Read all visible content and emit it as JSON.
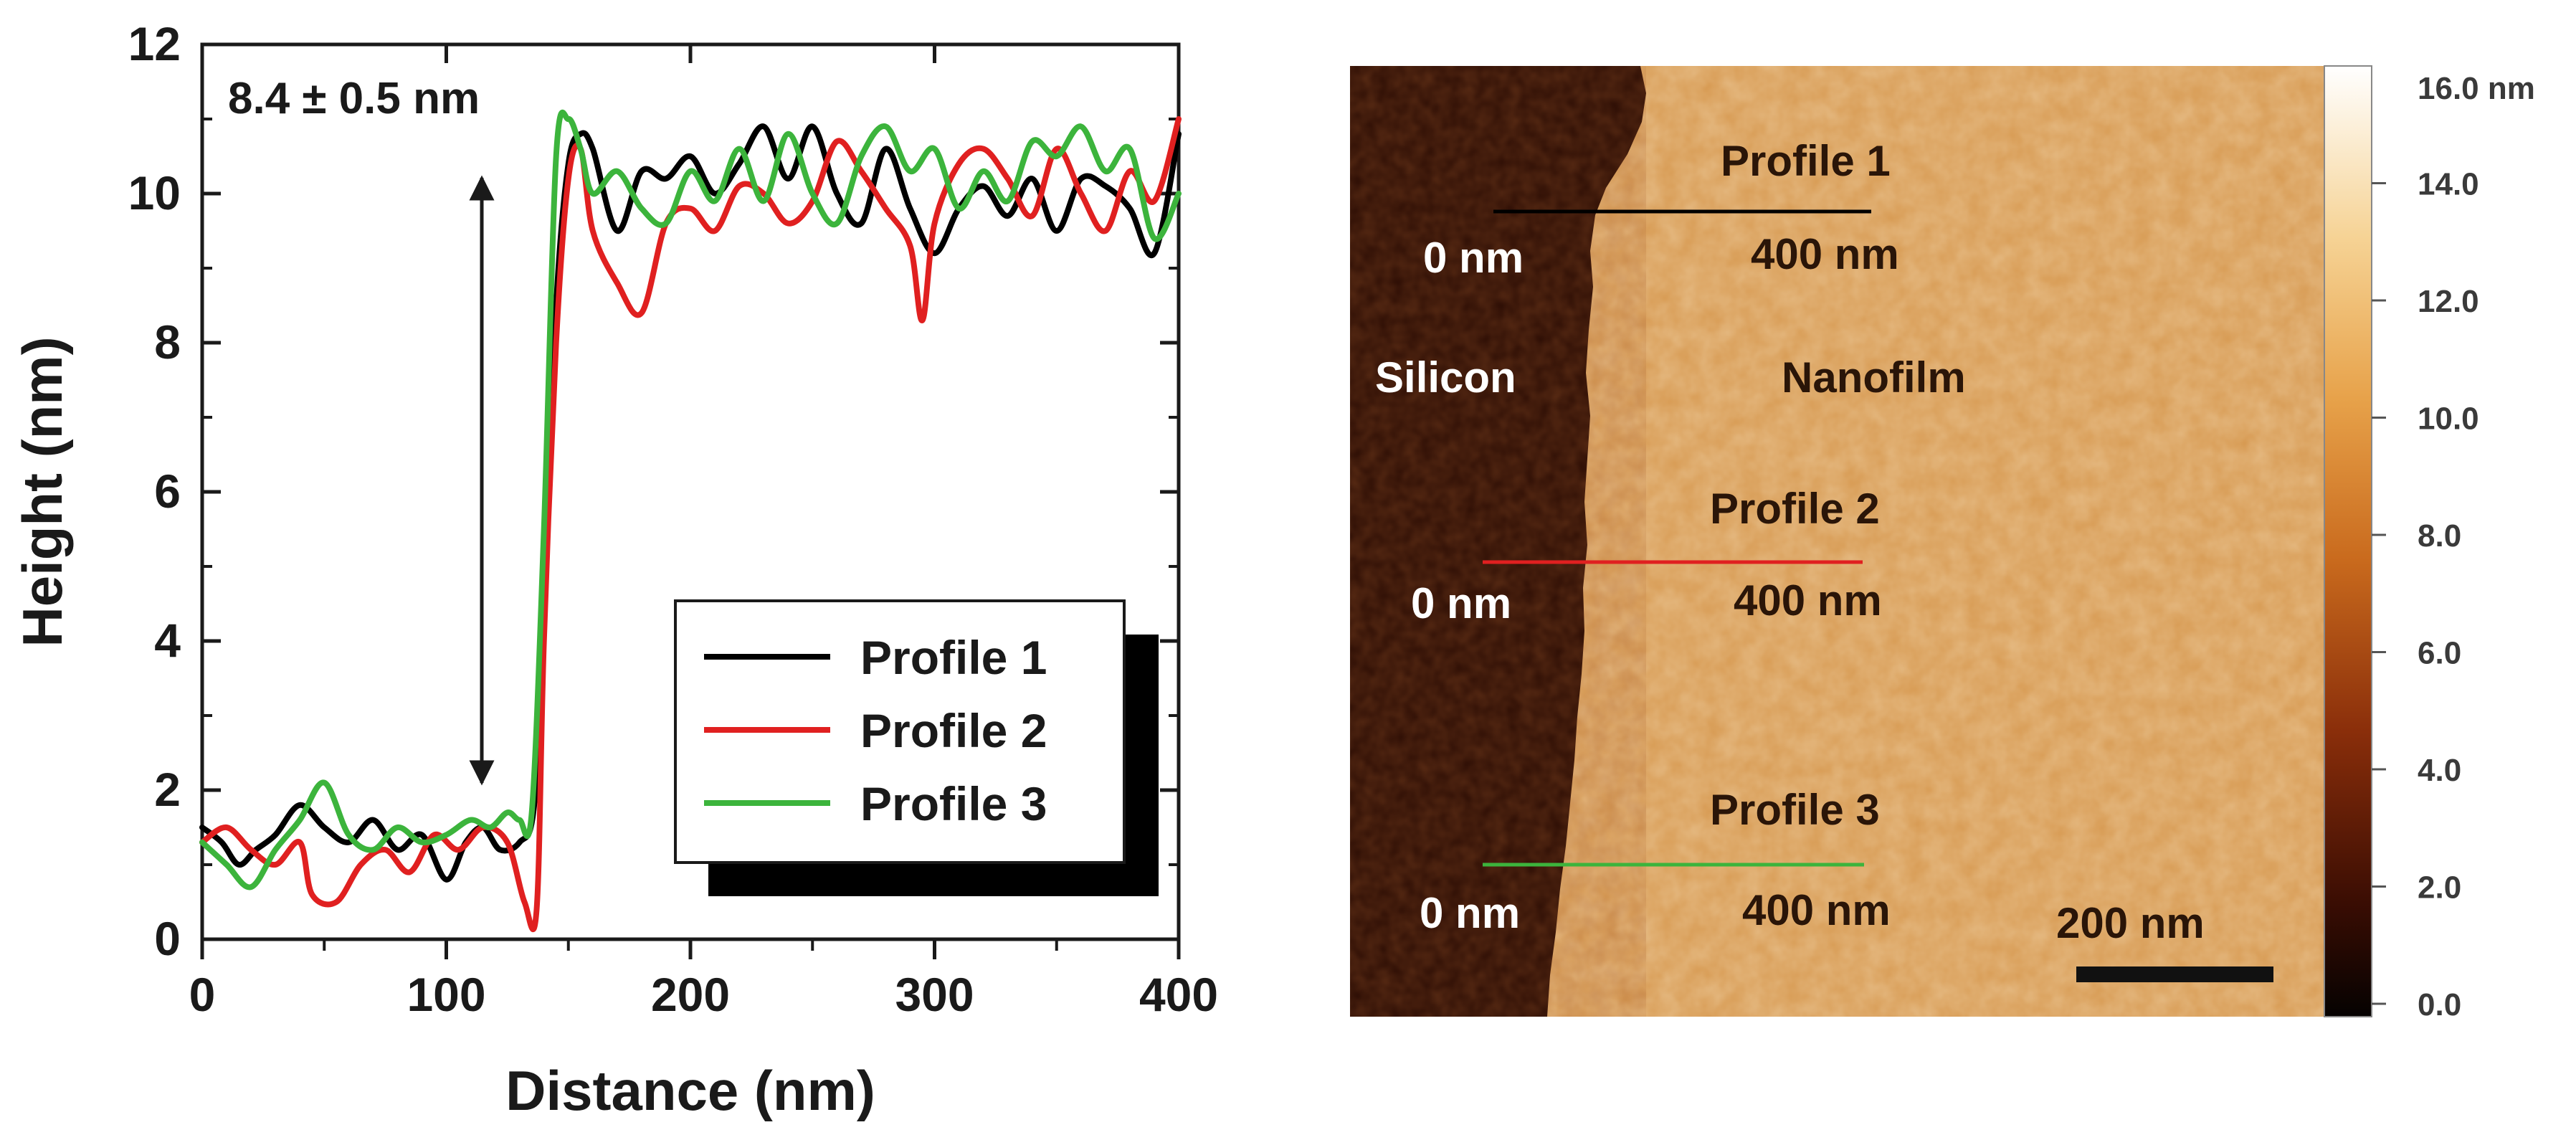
{
  "chart_data": {
    "type": "line",
    "title": "",
    "xlabel": "Distance (nm)",
    "ylabel": "Height (nm)",
    "xlim": [
      0,
      400
    ],
    "ylim": [
      0,
      12
    ],
    "xticks": [
      0,
      100,
      200,
      300,
      400
    ],
    "yticks": [
      0,
      2,
      4,
      6,
      8,
      10,
      12
    ],
    "legend_position": "lower-right",
    "annotation": "8.4 ± 0.5 nm",
    "series": [
      {
        "name": "Profile 1",
        "color": "#000000",
        "x": [
          0,
          8,
          15,
          22,
          30,
          40,
          50,
          60,
          70,
          80,
          90,
          100,
          108,
          115,
          122,
          130,
          136,
          140,
          145,
          150,
          155,
          160,
          170,
          180,
          190,
          200,
          210,
          220,
          230,
          240,
          250,
          260,
          270,
          280,
          290,
          300,
          310,
          320,
          330,
          340,
          350,
          360,
          370,
          380,
          390,
          400
        ],
        "y": [
          1.5,
          1.3,
          1.0,
          1.2,
          1.4,
          1.8,
          1.5,
          1.3,
          1.6,
          1.2,
          1.4,
          0.8,
          1.3,
          1.5,
          1.2,
          1.3,
          1.8,
          4.5,
          8.5,
          10.4,
          10.8,
          10.6,
          9.5,
          10.3,
          10.2,
          10.5,
          10.0,
          10.4,
          10.9,
          10.2,
          10.9,
          10.0,
          9.6,
          10.6,
          9.8,
          9.2,
          9.8,
          10.1,
          9.7,
          10.2,
          9.5,
          10.2,
          10.1,
          9.8,
          9.2,
          10.8
        ]
      },
      {
        "name": "Profile 2",
        "color": "#e02020",
        "x": [
          0,
          10,
          20,
          30,
          40,
          45,
          55,
          65,
          75,
          85,
          95,
          105,
          115,
          125,
          132,
          137,
          140,
          145,
          150,
          155,
          160,
          170,
          180,
          190,
          200,
          210,
          220,
          230,
          240,
          250,
          260,
          270,
          280,
          290,
          295,
          300,
          310,
          320,
          330,
          340,
          350,
          360,
          370,
          380,
          390,
          400
        ],
        "y": [
          1.3,
          1.5,
          1.2,
          1.0,
          1.3,
          0.6,
          0.5,
          1.0,
          1.2,
          0.9,
          1.4,
          1.2,
          1.5,
          1.3,
          0.5,
          0.4,
          4.0,
          8.0,
          10.2,
          10.6,
          9.5,
          8.8,
          8.4,
          9.6,
          9.8,
          9.5,
          10.1,
          10.0,
          9.6,
          9.9,
          10.7,
          10.3,
          9.8,
          9.3,
          8.3,
          9.6,
          10.4,
          10.6,
          10.2,
          9.7,
          10.6,
          10.0,
          9.5,
          10.3,
          9.9,
          11.0
        ]
      },
      {
        "name": "Profile 3",
        "color": "#3cb43c",
        "x": [
          0,
          10,
          20,
          30,
          40,
          50,
          60,
          70,
          80,
          90,
          100,
          110,
          118,
          125,
          130,
          135,
          140,
          145,
          150,
          155,
          160,
          170,
          180,
          190,
          200,
          210,
          220,
          230,
          240,
          250,
          260,
          270,
          280,
          290,
          300,
          310,
          320,
          330,
          340,
          350,
          360,
          370,
          380,
          390,
          400
        ],
        "y": [
          1.3,
          1.0,
          0.7,
          1.2,
          1.6,
          2.1,
          1.4,
          1.2,
          1.5,
          1.3,
          1.4,
          1.6,
          1.5,
          1.7,
          1.6,
          1.7,
          5.5,
          10.5,
          11.0,
          10.6,
          10.0,
          10.3,
          9.8,
          9.6,
          10.3,
          9.9,
          10.6,
          9.9,
          10.8,
          10.0,
          9.6,
          10.5,
          10.9,
          10.3,
          10.6,
          9.8,
          10.3,
          9.9,
          10.7,
          10.5,
          10.9,
          10.3,
          10.6,
          9.4,
          10.0
        ]
      }
    ]
  },
  "afm_image": {
    "labels": {
      "profile1": "Profile 1",
      "profile2": "Profile 2",
      "profile3": "Profile 3",
      "p1_start": "0 nm",
      "p1_end": "400 nm",
      "p2_start": "0 nm",
      "p2_end": "400 nm",
      "p3_start": "0 nm",
      "p3_end": "400 nm",
      "silicon": "Silicon",
      "nanofilm": "Nanofilm",
      "scale_bar": "200 nm"
    },
    "profile_colors": [
      "#000000",
      "#e02020",
      "#3cb43c"
    ],
    "colorbar": {
      "unit_label": "16.0 nm",
      "ticks": [
        "14.0",
        "12.0",
        "10.0",
        "8.0",
        "6.0",
        "4.0",
        "2.0",
        "0.0"
      ]
    }
  }
}
